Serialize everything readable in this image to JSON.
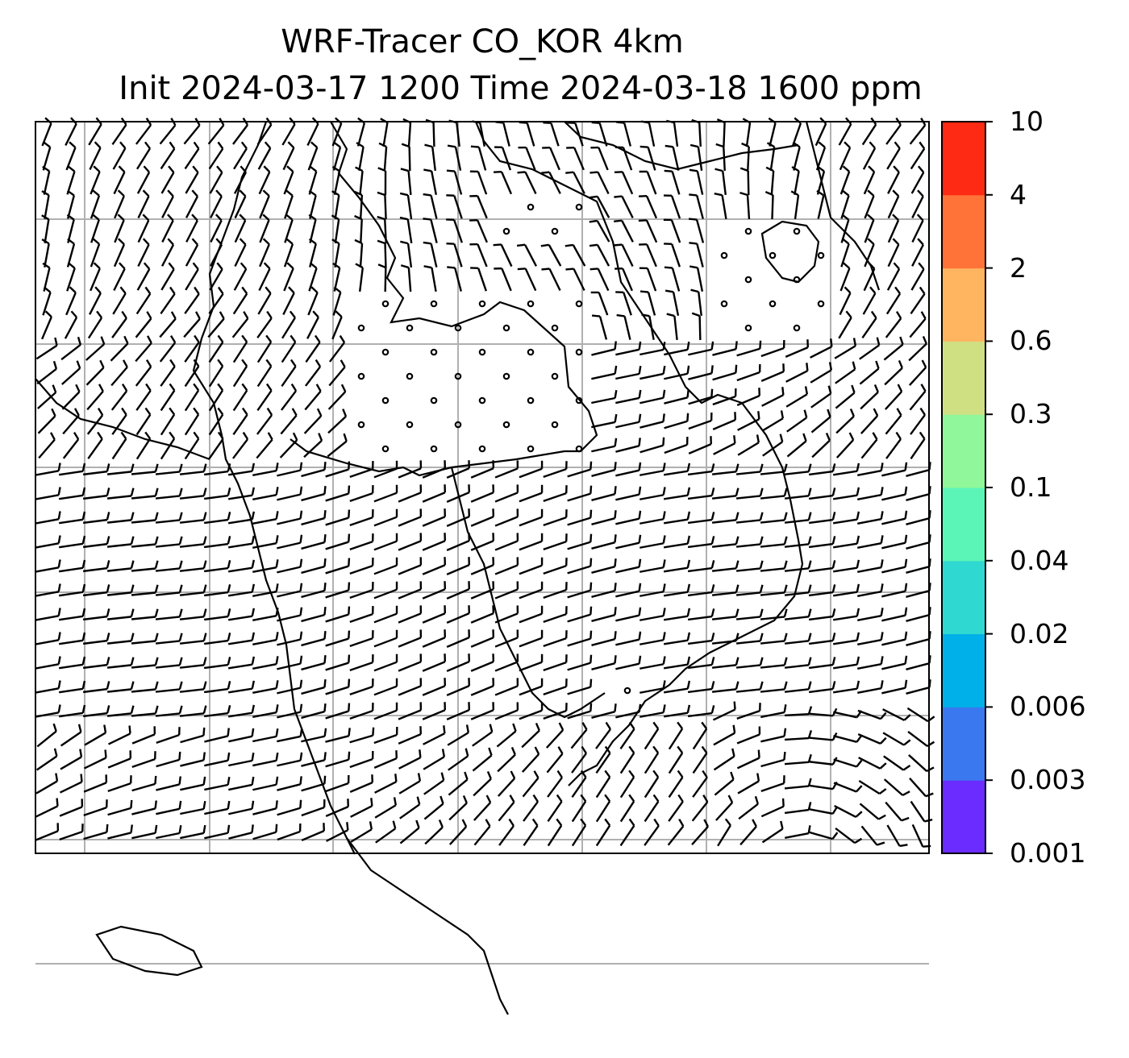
{
  "title": {
    "line1": "WRF-Tracer CO_KOR 4km",
    "line2": "Init 2024-03-17 1200 Time 2024-03-18 1600 ppm"
  },
  "colorbar": {
    "levels": [
      "0.001",
      "0.003",
      "0.006",
      "0.02",
      "0.04",
      "0.1",
      "0.3",
      "0.6",
      "2",
      "4",
      "10"
    ],
    "colors": [
      "#6a2cff",
      "#3a78f0",
      "#00b0e8",
      "#2fd8d0",
      "#5cf5b8",
      "#90f79a",
      "#cfe083",
      "#ffb460",
      "#ff7238",
      "#ff2a14"
    ]
  },
  "map": {
    "gridline_color": "#b0b0b0",
    "coastline_color": "#000000",
    "wind_barb_color": "#000000"
  }
}
